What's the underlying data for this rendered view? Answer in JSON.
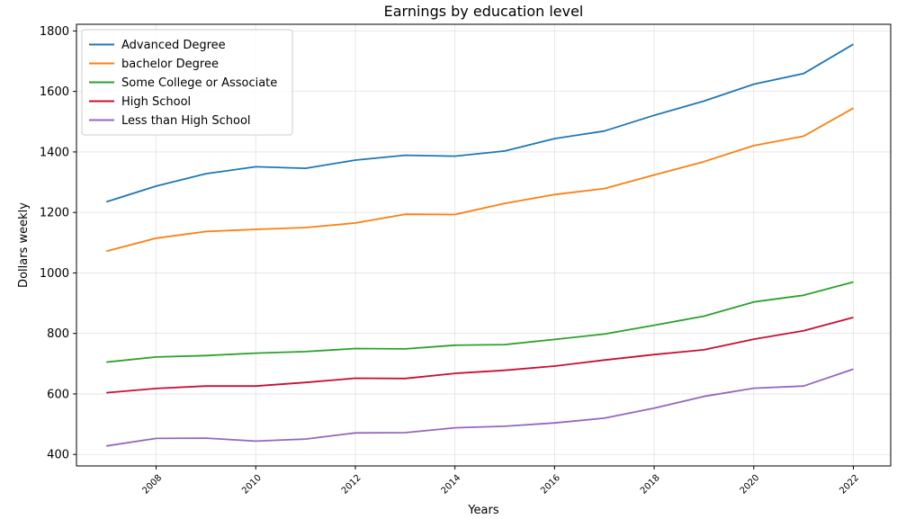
{
  "chart_data": {
    "type": "line",
    "title": "Earnings by education level",
    "xlabel": "Years",
    "ylabel": "Dollars weekly",
    "x": [
      2007,
      2008,
      2009,
      2010,
      2011,
      2012,
      2013,
      2014,
      2015,
      2016,
      2017,
      2018,
      2019,
      2020,
      2021,
      2022
    ],
    "xlim": [
      2006.4,
      2022.75
    ],
    "ylim": [
      362,
      1822
    ],
    "x_ticks": [
      2008,
      2010,
      2012,
      2014,
      2016,
      2018,
      2020,
      2022
    ],
    "y_ticks": [
      400,
      600,
      800,
      1000,
      1200,
      1400,
      1600,
      1800
    ],
    "grid": true,
    "legend_position": "top-left",
    "series": [
      {
        "name": "Advanced Degree",
        "color": "#1f77b4",
        "values": [
          1235,
          1287,
          1328,
          1351,
          1346,
          1373,
          1389,
          1386,
          1403,
          1444,
          1469,
          1521,
          1568,
          1624,
          1659,
          1756
        ]
      },
      {
        "name": "bachelor Degree",
        "color": "#ff7f0e",
        "values": [
          1072,
          1115,
          1137,
          1144,
          1150,
          1165,
          1194,
          1193,
          1230,
          1259,
          1279,
          1324,
          1368,
          1421,
          1452,
          1545
        ]
      },
      {
        "name": "Some College or Associate",
        "color": "#2ca02c",
        "values": [
          705,
          722,
          727,
          735,
          740,
          750,
          749,
          761,
          763,
          780,
          798,
          827,
          857,
          904,
          926,
          970
        ]
      },
      {
        "name": "High School",
        "color": "#c80f32",
        "values": [
          604,
          618,
          626,
          626,
          638,
          652,
          651,
          668,
          678,
          692,
          712,
          730,
          746,
          781,
          809,
          853
        ]
      },
      {
        "name": "Less than High School",
        "color": "#9467bd",
        "values": [
          428,
          453,
          454,
          444,
          451,
          471,
          472,
          488,
          493,
          504,
          520,
          553,
          592,
          619,
          626,
          682
        ]
      }
    ]
  }
}
